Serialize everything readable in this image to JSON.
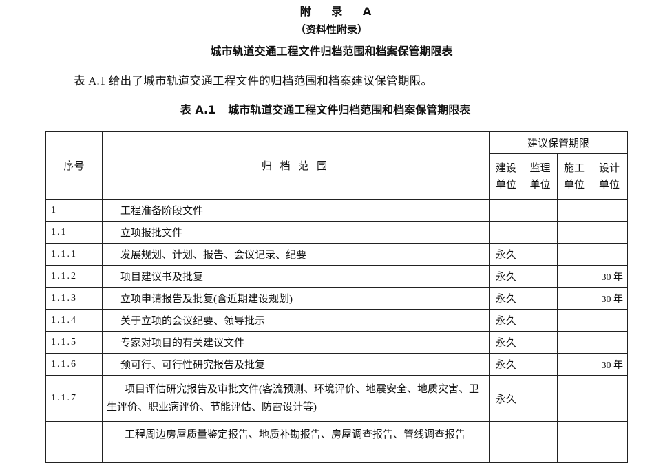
{
  "appendix": {
    "title": "附 录 A",
    "subtitle": "（资料性附录）",
    "heading": "城市轨道交通工程文件归档范围和档案保管期限表"
  },
  "intro": "表 A.1 给出了城市轨道交通工程文件的归档范围和档案建议保管期限。",
  "caption": {
    "number": "表 A.1",
    "title": "城市轨道交通工程文件归档范围和档案保管期限表"
  },
  "table": {
    "headers": {
      "seq": "序号",
      "scope": "归 档 范 围",
      "period_group": "建议保管期限",
      "units": [
        "建设\n单位",
        "监理\n单位",
        "施工\n单位",
        "设计\n单位"
      ]
    },
    "rows": [
      {
        "seq": "1",
        "scope": "工程准备阶段文件",
        "values": [
          "",
          "",
          "",
          ""
        ]
      },
      {
        "seq": "1.1",
        "scope": "立项报批文件",
        "values": [
          "",
          "",
          "",
          ""
        ]
      },
      {
        "seq": "1.1.1",
        "scope": "发展规划、计划、报告、会议记录、纪要",
        "values": [
          "永久",
          "",
          "",
          ""
        ]
      },
      {
        "seq": "1.1.2",
        "scope": "项目建议书及批复",
        "values": [
          "永久",
          "",
          "",
          "30 年"
        ]
      },
      {
        "seq": "1.1.3",
        "scope": "立项申请报告及批复(含近期建设规划)",
        "values": [
          "永久",
          "",
          "",
          "30 年"
        ]
      },
      {
        "seq": "1.1.4",
        "scope": "关于立项的会议纪要、领导批示",
        "values": [
          "永久",
          "",
          "",
          ""
        ]
      },
      {
        "seq": "1.1.5",
        "scope": "专家对项目的有关建议文件",
        "values": [
          "永久",
          "",
          "",
          ""
        ]
      },
      {
        "seq": "1.1.6",
        "scope": "预可行、可行性研究报告及批复",
        "values": [
          "永久",
          "",
          "",
          "30 年"
        ]
      },
      {
        "seq": "1.1.7",
        "scope": "项目评估研究报告及审批文件(客流预测、环境评价、地震安全、地质灾害、卫生评价、职业病评价、节能评估、防雷设计等)",
        "values": [
          "永久",
          "",
          "",
          ""
        ]
      },
      {
        "seq": "",
        "scope": "工程周边房屋质量鉴定报告、地质补勘报告、房屋调查报告、管线调查报告",
        "values": [
          "",
          "",
          "",
          ""
        ]
      }
    ]
  }
}
